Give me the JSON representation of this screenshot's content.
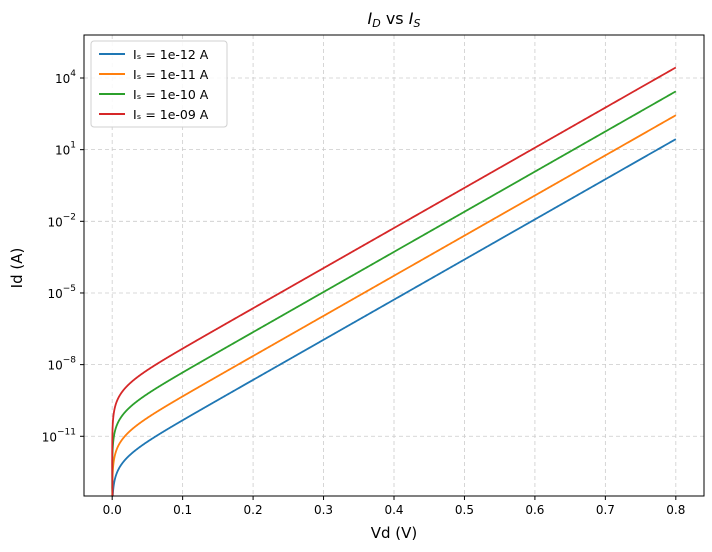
{
  "chart_data": {
    "type": "line",
    "title": "I_D vs I_S",
    "title_parts": {
      "i1": "I",
      "s1": "D",
      "mid": " vs ",
      "i2": "I",
      "s2": "S"
    },
    "xlabel": "Vd (V)",
    "ylabel": "Id (A)",
    "xlim": [
      -0.04,
      0.84
    ],
    "ylim_log10": [
      -13.5,
      5.8
    ],
    "y_scale": "log",
    "grid": true,
    "legend_position": "top-left",
    "x_ticks": [
      0.0,
      0.1,
      0.2,
      0.3,
      0.4,
      0.5,
      0.6,
      0.7,
      0.8
    ],
    "x_tick_labels": [
      "0.0",
      "0.1",
      "0.2",
      "0.3",
      "0.4",
      "0.5",
      "0.6",
      "0.7",
      "0.8"
    ],
    "y_ticks_exp": [
      -11,
      -8,
      -5,
      -2,
      1,
      4
    ],
    "y_tick_labels": [
      "10",
      "10",
      "10",
      "10",
      "10",
      "10"
    ],
    "y_tick_exponents": [
      "−11",
      "−8",
      "−5",
      "−2",
      "1",
      "4"
    ],
    "model": "Id = Is * (exp(Vd / 0.02585) - 1)",
    "vd_range": [
      0.0,
      0.8
    ],
    "series": [
      {
        "name": "Iₛ = 1e-12 A",
        "is": 1e-12,
        "color": "#1f77b4"
      },
      {
        "name": "Iₛ = 1e-11 A",
        "is": 1e-11,
        "color": "#ff7f0e"
      },
      {
        "name": "Iₛ = 1e-10 A",
        "is": 1e-10,
        "color": "#2ca02c"
      },
      {
        "name": "Iₛ = 1e-09 A",
        "is": 1e-09,
        "color": "#d62728"
      }
    ]
  }
}
